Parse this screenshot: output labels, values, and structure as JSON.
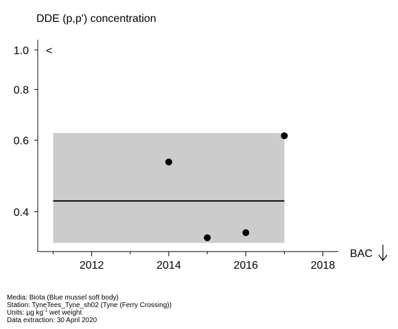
{
  "chart_data": {
    "type": "scatter",
    "title": "DDE (p,p') concentration",
    "xlabel": "",
    "ylabel": "",
    "y_scale": "log",
    "xlim": [
      2010.6,
      2018.4
    ],
    "ylim": [
      0.319,
      1.06
    ],
    "x_ticks": [
      2012,
      2014,
      2016,
      2018
    ],
    "x_tick_labels": [
      "2012",
      "2014",
      "2016",
      "2018"
    ],
    "y_ticks": [
      0.4,
      0.6,
      0.8,
      1.0
    ],
    "y_tick_labels": [
      "0.4",
      "0.6",
      "0.8",
      "1.0"
    ],
    "points": [
      {
        "x": 2014,
        "y": 0.53
      },
      {
        "x": 2015,
        "y": 0.345
      },
      {
        "x": 2016,
        "y": 0.355
      },
      {
        "x": 2017,
        "y": 0.615
      }
    ],
    "trend_value": 0.425,
    "band": {
      "x": [
        2011,
        2017
      ],
      "y": [
        0.335,
        0.625
      ]
    },
    "upper_marker": "<",
    "threshold_label": "BAC",
    "threshold_arrow": "down",
    "grid": false,
    "colors": {
      "band": "#cccccc",
      "points": "#000000",
      "line": "#000000"
    }
  },
  "footer": {
    "media": "Media: Biota (Blue mussel soft body)",
    "station": "Station: TyneTees_Tyne_sh02 (Tyne (Ferry Crossing))",
    "units_prefix": "Units:  µg kg",
    "units_sup": "-1",
    "units_suffix": " wet weight",
    "extraction": "Data extraction: 30 April 2020"
  }
}
